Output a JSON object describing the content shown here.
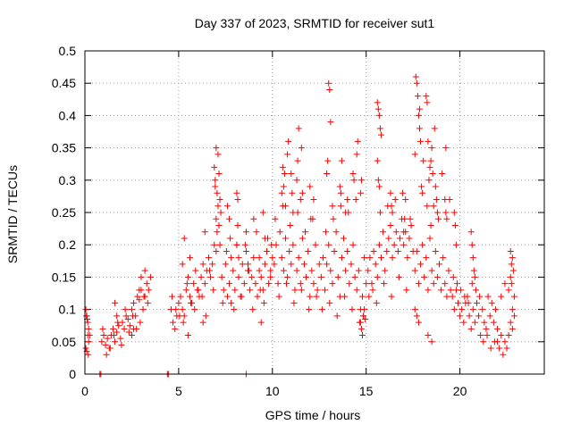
{
  "chart_data": {
    "type": "scatter",
    "title": "Day 337 of 2023, SRMTID for receiver sut1",
    "xlabel": "GPS time / hours",
    "ylabel": "SRMTID / TECUs",
    "xlim": [
      0,
      24.5
    ],
    "ylim": [
      0,
      0.5
    ],
    "x_ticks": [
      0,
      5,
      10,
      15,
      20
    ],
    "x_tick_labels": [
      "0",
      "5",
      "10",
      "15",
      "20"
    ],
    "y_ticks": [
      0,
      0.05,
      0.1,
      0.15,
      0.2,
      0.25,
      0.3,
      0.35,
      0.4,
      0.45,
      0.5
    ],
    "y_tick_labels": [
      "0",
      "0.05",
      "0.1",
      "0.15",
      "0.2",
      "0.25",
      "0.3",
      "0.35",
      "0.4",
      "0.45",
      "0.5"
    ],
    "grid": true,
    "marker": "+",
    "color": "#ff0000",
    "series": [
      {
        "name": "SRMTID",
        "x": [
          0.05,
          0.1,
          0.15,
          0.2,
          0.25,
          0.05,
          0.1,
          0.15,
          0.2,
          0.08,
          0.12,
          0.18,
          0.9,
          1.0,
          1.1,
          1.2,
          1.3,
          1.4,
          1.5,
          1.6,
          1.7,
          1.8,
          1.9,
          2.0,
          2.1,
          2.2,
          2.3,
          2.4,
          2.5,
          2.6,
          2.7,
          2.8,
          2.9,
          3.0,
          3.1,
          3.2,
          3.3,
          3.4,
          3.5,
          0.95,
          1.15,
          1.35,
          1.55,
          1.75,
          1.95,
          2.15,
          2.35,
          2.55,
          2.75,
          2.95,
          3.15,
          3.35,
          1.6,
          1.7,
          2.5,
          2.6,
          2.9,
          3.0,
          3.2,
          4.6,
          4.7,
          4.8,
          4.9,
          5.0,
          5.1,
          5.2,
          5.3,
          5.4,
          5.5,
          5.6,
          5.7,
          5.8,
          5.9,
          6.0,
          6.1,
          6.2,
          6.3,
          6.4,
          6.5,
          6.6,
          6.7,
          6.8,
          6.9,
          7.0,
          4.65,
          4.85,
          5.05,
          5.25,
          5.45,
          5.65,
          5.85,
          6.05,
          6.25,
          6.45,
          6.65,
          6.85,
          5.5,
          5.6,
          6.3,
          6.4,
          5.2,
          5.3,
          6.9,
          6.95,
          7.0,
          7.05,
          7.1,
          7.15,
          7.2,
          7.25,
          7.0,
          7.05,
          6.95,
          7.1,
          7.15,
          7.2,
          7.3,
          7.4,
          7.5,
          7.6,
          7.7,
          7.8,
          7.9,
          8.0,
          8.1,
          8.2,
          8.3,
          8.4,
          8.5,
          8.6,
          8.7,
          8.8,
          8.9,
          9.0,
          9.1,
          9.2,
          9.3,
          9.4,
          9.5,
          9.6,
          9.7,
          9.8,
          9.9,
          10.0,
          7.35,
          7.55,
          7.75,
          7.95,
          8.15,
          8.35,
          8.55,
          8.75,
          8.95,
          9.15,
          9.35,
          9.55,
          9.75,
          9.95,
          7.6,
          7.7,
          8.1,
          8.2,
          8.6,
          8.7,
          9.0,
          9.3,
          9.6,
          9.9,
          8.1,
          8.15,
          7.8,
          9.4,
          9.5,
          10.1,
          10.2,
          10.3,
          10.4,
          10.5,
          10.6,
          10.7,
          10.8,
          10.9,
          11.0,
          11.1,
          11.2,
          11.3,
          11.4,
          11.5,
          11.6,
          11.7,
          11.8,
          11.9,
          12.0,
          12.1,
          12.2,
          12.3,
          12.4,
          12.5,
          10.15,
          10.35,
          10.55,
          10.75,
          10.95,
          11.15,
          11.35,
          11.55,
          11.75,
          11.95,
          12.15,
          12.35,
          10.6,
          10.65,
          10.7,
          10.8,
          10.85,
          11.3,
          11.35,
          11.4,
          11.5,
          11.55,
          11.6,
          10.5,
          10.55,
          11.0,
          11.05,
          11.1,
          12.0,
          12.05,
          12.2,
          12.6,
          12.7,
          12.8,
          12.9,
          13.0,
          13.1,
          13.2,
          13.3,
          13.4,
          13.5,
          13.6,
          13.7,
          13.8,
          13.9,
          14.0,
          14.1,
          14.2,
          14.3,
          14.4,
          14.5,
          14.6,
          14.7,
          14.8,
          14.9,
          15.0,
          12.65,
          12.85,
          13.05,
          13.25,
          13.45,
          13.65,
          13.85,
          14.05,
          14.25,
          14.45,
          14.65,
          14.85,
          13.0,
          13.05,
          13.1,
          12.9,
          12.95,
          13.6,
          13.65,
          13.7,
          13.2,
          14.3,
          14.35,
          14.5,
          14.55,
          13.9,
          14.0,
          14.7,
          14.75,
          14.7,
          14.75,
          14.8,
          14.85,
          14.9,
          14.95,
          15.1,
          15.2,
          15.3,
          15.4,
          15.5,
          15.6,
          15.7,
          15.8,
          15.9,
          16.0,
          16.1,
          16.2,
          16.3,
          16.4,
          16.5,
          16.6,
          16.7,
          16.8,
          16.9,
          17.0,
          17.1,
          17.2,
          17.3,
          17.4,
          17.5,
          15.15,
          15.35,
          15.55,
          15.75,
          15.95,
          16.15,
          16.35,
          16.55,
          16.75,
          16.95,
          17.15,
          17.35,
          15.6,
          15.65,
          15.7,
          15.75,
          15.8,
          15.6,
          15.65,
          15.7,
          16.3,
          16.35,
          16.4,
          17.0,
          17.05,
          17.1,
          17.6,
          17.7,
          17.8,
          17.9,
          18.0,
          18.1,
          18.2,
          18.3,
          18.4,
          18.5,
          18.6,
          18.7,
          18.8,
          18.9,
          19.0,
          19.1,
          19.2,
          19.3,
          19.4,
          19.5,
          17.65,
          17.85,
          18.05,
          18.25,
          18.45,
          18.65,
          18.85,
          19.05,
          19.25,
          19.45,
          17.7,
          17.75,
          17.8,
          17.85,
          17.9,
          18.2,
          18.25,
          18.3,
          18.35,
          18.4,
          18.45,
          18.5,
          18.55,
          17.6,
          17.95,
          18.0,
          18.6,
          18.7,
          18.75,
          18.8,
          19.2,
          19.25,
          19.3,
          17.6,
          17.7,
          17.8,
          18.5,
          18.3,
          19.6,
          19.7,
          19.8,
          19.9,
          20.0,
          20.1,
          20.2,
          20.3,
          20.4,
          20.5,
          20.6,
          20.7,
          20.8,
          20.9,
          21.0,
          21.1,
          21.2,
          21.3,
          21.4,
          21.5,
          21.6,
          21.7,
          21.8,
          21.9,
          22.0,
          19.65,
          19.85,
          20.05,
          20.25,
          20.45,
          20.65,
          20.85,
          21.05,
          21.25,
          21.45,
          21.65,
          21.85,
          19.7,
          19.75,
          19.8,
          20.6,
          20.65,
          20.7,
          20.75,
          20.8,
          22.0,
          22.1,
          22.2,
          22.3,
          22.4,
          22.5,
          22.6,
          22.7,
          22.8,
          22.9,
          22.2,
          22.4,
          22.6,
          22.8,
          22.7,
          22.75,
          22.8,
          22.85,
          22.9,
          22.7,
          22.75,
          0.8,
          0.85,
          4.4,
          4.45,
          8.6
        ],
        "y": [
          0.1,
          0.09,
          0.08,
          0.07,
          0.06,
          0.04,
          0.035,
          0.06,
          0.05,
          0.09,
          0.085,
          0.03,
          0.05,
          0.06,
          0.045,
          0.055,
          0.04,
          0.06,
          0.07,
          0.05,
          0.065,
          0.075,
          0.055,
          0.08,
          0.07,
          0.09,
          0.085,
          0.075,
          0.1,
          0.11,
          0.09,
          0.12,
          0.115,
          0.13,
          0.1,
          0.12,
          0.14,
          0.13,
          0.15,
          0.07,
          0.03,
          0.04,
          0.06,
          0.08,
          0.045,
          0.1,
          0.065,
          0.09,
          0.07,
          0.08,
          0.12,
          0.11,
          0.11,
          0.09,
          0.06,
          0.07,
          0.13,
          0.15,
          0.16,
          0.1,
          0.08,
          0.07,
          0.09,
          0.11,
          0.12,
          0.1,
          0.09,
          0.13,
          0.15,
          0.12,
          0.11,
          0.14,
          0.16,
          0.13,
          0.12,
          0.15,
          0.17,
          0.14,
          0.16,
          0.18,
          0.15,
          0.17,
          0.2,
          0.19,
          0.12,
          0.1,
          0.09,
          0.08,
          0.14,
          0.11,
          0.1,
          0.13,
          0.12,
          0.09,
          0.16,
          0.13,
          0.06,
          0.18,
          0.08,
          0.22,
          0.17,
          0.21,
          0.32,
          0.3,
          0.35,
          0.28,
          0.26,
          0.31,
          0.27,
          0.25,
          0.24,
          0.22,
          0.29,
          0.34,
          0.23,
          0.2,
          0.15,
          0.13,
          0.17,
          0.12,
          0.14,
          0.18,
          0.16,
          0.13,
          0.2,
          0.15,
          0.12,
          0.17,
          0.14,
          0.19,
          0.16,
          0.13,
          0.15,
          0.18,
          0.14,
          0.12,
          0.16,
          0.15,
          0.13,
          0.17,
          0.19,
          0.14,
          0.16,
          0.18,
          0.11,
          0.19,
          0.21,
          0.1,
          0.23,
          0.12,
          0.2,
          0.16,
          0.1,
          0.22,
          0.13,
          0.11,
          0.21,
          0.2,
          0.26,
          0.24,
          0.2,
          0.18,
          0.22,
          0.17,
          0.24,
          0.18,
          0.21,
          0.15,
          0.28,
          0.27,
          0.11,
          0.08,
          0.25,
          0.17,
          0.2,
          0.14,
          0.22,
          0.18,
          0.16,
          0.21,
          0.15,
          0.19,
          0.17,
          0.2,
          0.13,
          0.16,
          0.18,
          0.14,
          0.21,
          0.17,
          0.15,
          0.19,
          0.12,
          0.16,
          0.14,
          0.2,
          0.13,
          0.17,
          0.24,
          0.12,
          0.26,
          0.14,
          0.23,
          0.11,
          0.25,
          0.13,
          0.22,
          0.1,
          0.24,
          0.12,
          0.29,
          0.31,
          0.26,
          0.34,
          0.36,
          0.3,
          0.33,
          0.38,
          0.27,
          0.35,
          0.28,
          0.28,
          0.32,
          0.31,
          0.28,
          0.25,
          0.29,
          0.24,
          0.27,
          0.15,
          0.18,
          0.13,
          0.17,
          0.2,
          0.16,
          0.14,
          0.19,
          0.22,
          0.15,
          0.12,
          0.18,
          0.21,
          0.16,
          0.19,
          0.14,
          0.17,
          0.2,
          0.15,
          0.13,
          0.16,
          0.1,
          0.12,
          0.18,
          0.14,
          0.1,
          0.22,
          0.11,
          0.24,
          0.09,
          0.26,
          0.12,
          0.25,
          0.1,
          0.27,
          0.08,
          0.09,
          0.45,
          0.44,
          0.39,
          0.31,
          0.33,
          0.29,
          0.28,
          0.33,
          0.26,
          0.31,
          0.3,
          0.34,
          0.36,
          0.25,
          0.27,
          0.28,
          0.3,
          0.08,
          0.07,
          0.06,
          0.09,
          0.1,
          0.085,
          0.16,
          0.18,
          0.14,
          0.19,
          0.17,
          0.15,
          0.2,
          0.18,
          0.22,
          0.16,
          0.19,
          0.21,
          0.23,
          0.18,
          0.2,
          0.22,
          0.19,
          0.21,
          0.24,
          0.2,
          0.22,
          0.18,
          0.21,
          0.23,
          0.19,
          0.12,
          0.13,
          0.11,
          0.25,
          0.14,
          0.26,
          0.12,
          0.27,
          0.15,
          0.28,
          0.13,
          0.24,
          0.42,
          0.41,
          0.4,
          0.38,
          0.37,
          0.33,
          0.3,
          0.29,
          0.28,
          0.26,
          0.25,
          0.22,
          0.24,
          0.27,
          0.16,
          0.19,
          0.14,
          0.17,
          0.2,
          0.15,
          0.18,
          0.13,
          0.21,
          0.16,
          0.14,
          0.19,
          0.15,
          0.17,
          0.13,
          0.18,
          0.14,
          0.12,
          0.16,
          0.13,
          0.46,
          0.41,
          0.33,
          0.26,
          0.23,
          0.38,
          0.24,
          0.31,
          0.35,
          0.27,
          0.45,
          0.43,
          0.4,
          0.38,
          0.36,
          0.43,
          0.42,
          0.36,
          0.3,
          0.32,
          0.33,
          0.35,
          0.31,
          0.34,
          0.29,
          0.28,
          0.26,
          0.29,
          0.27,
          0.25,
          0.27,
          0.25,
          0.24,
          0.1,
          0.09,
          0.08,
          0.05,
          0.06,
          0.12,
          0.1,
          0.13,
          0.11,
          0.09,
          0.1,
          0.08,
          0.11,
          0.12,
          0.09,
          0.07,
          0.1,
          0.08,
          0.11,
          0.09,
          0.06,
          0.1,
          0.08,
          0.07,
          0.12,
          0.09,
          0.11,
          0.08,
          0.1,
          0.07,
          0.15,
          0.14,
          0.13,
          0.12,
          0.11,
          0.14,
          0.13,
          0.12,
          0.05,
          0.06,
          0.04,
          0.05,
          0.25,
          0.23,
          0.2,
          0.22,
          0.2,
          0.18,
          0.16,
          0.15,
          0.05,
          0.04,
          0.06,
          0.03,
          0.05,
          0.04,
          0.06,
          0.08,
          0.07,
          0.09,
          0.12,
          0.14,
          0.13,
          0.1,
          0.19,
          0.17,
          0.18,
          0.16,
          0.12,
          0.15,
          0.14,
          0.0,
          0.0,
          0.0,
          0.0,
          0.0
        ]
      }
    ]
  }
}
